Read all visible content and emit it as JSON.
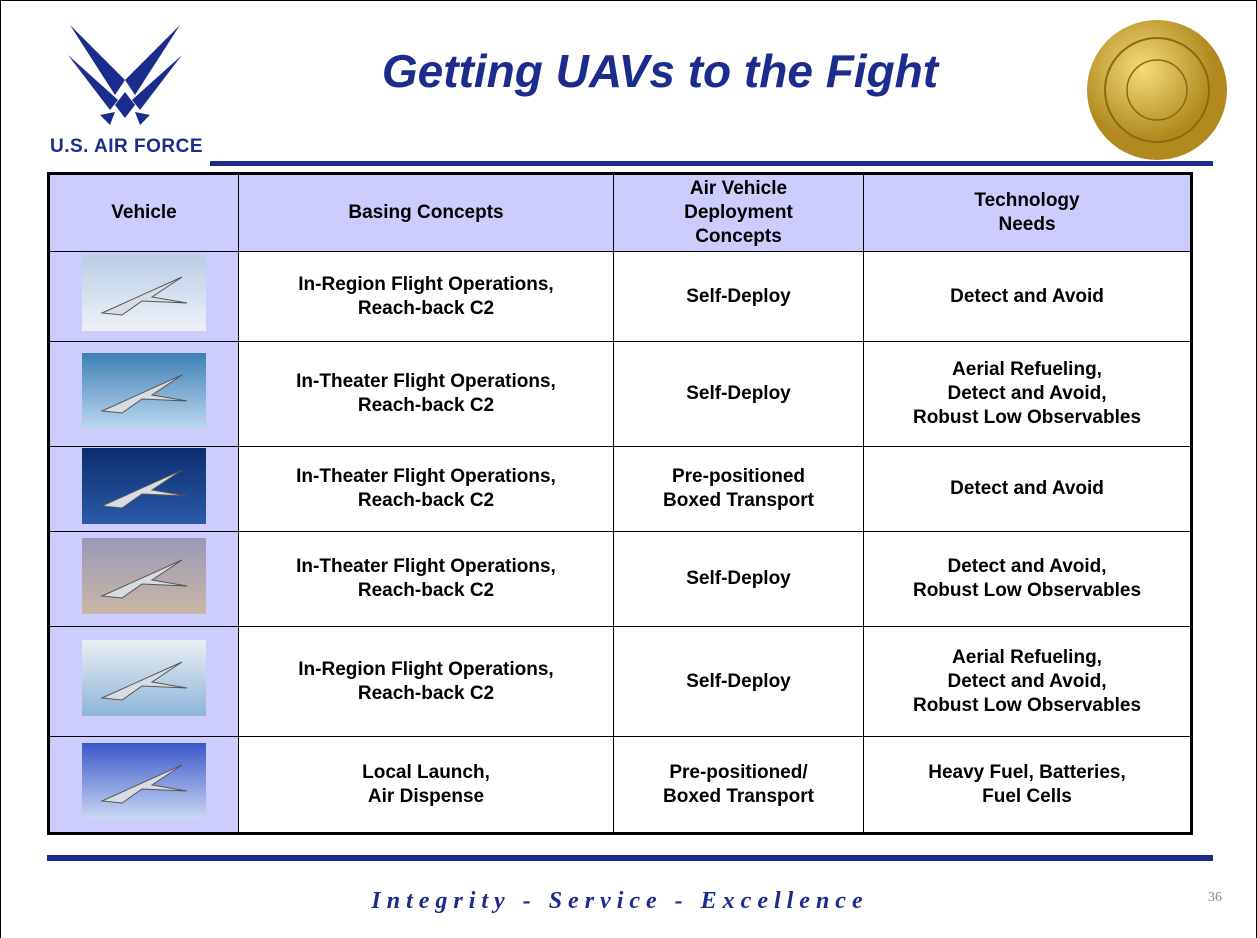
{
  "header": {
    "title": "Getting UAVs to the Fight",
    "logo_text": "U.S. AIR FORCE"
  },
  "table": {
    "columns": [
      [
        "Vehicle"
      ],
      [
        "Basing Concepts"
      ],
      [
        "Air Vehicle",
        "Deployment",
        "Concepts"
      ],
      [
        "Technology",
        "Needs"
      ]
    ],
    "rows": [
      [
        [
          "In-Region Flight Operations,",
          "Reach-back C2"
        ],
        [
          "Self-Deploy"
        ],
        [
          "Detect and Avoid"
        ]
      ],
      [
        [
          "In-Theater Flight Operations,",
          "Reach-back C2"
        ],
        [
          "Self-Deploy"
        ],
        [
          "Aerial Refueling,",
          "Detect and Avoid,",
          "Robust Low Observables"
        ]
      ],
      [
        [
          "In-Theater Flight Operations,",
          "Reach-back C2"
        ],
        [
          "Pre-positioned",
          "Boxed Transport"
        ],
        [
          "Detect and Avoid"
        ]
      ],
      [
        [
          "In-Theater Flight Operations,",
          "Reach-back C2"
        ],
        [
          "Self-Deploy"
        ],
        [
          "Detect and Avoid,",
          "Robust Low Observables"
        ]
      ],
      [
        [
          "In-Region Flight Operations,",
          "Reach-back C2"
        ],
        [
          "Self-Deploy"
        ],
        [
          "Aerial Refueling,",
          "Detect and Avoid,",
          "Robust Low Observables"
        ]
      ],
      [
        [
          "Local Launch,",
          "Air Dispense"
        ],
        [
          "Pre-positioned/",
          "Boxed Transport"
        ],
        [
          "Heavy Fuel, Batteries,",
          "Fuel Cells"
        ]
      ]
    ]
  },
  "footer": {
    "motto": "Integrity - Service - Excellence",
    "page_number": "36"
  }
}
